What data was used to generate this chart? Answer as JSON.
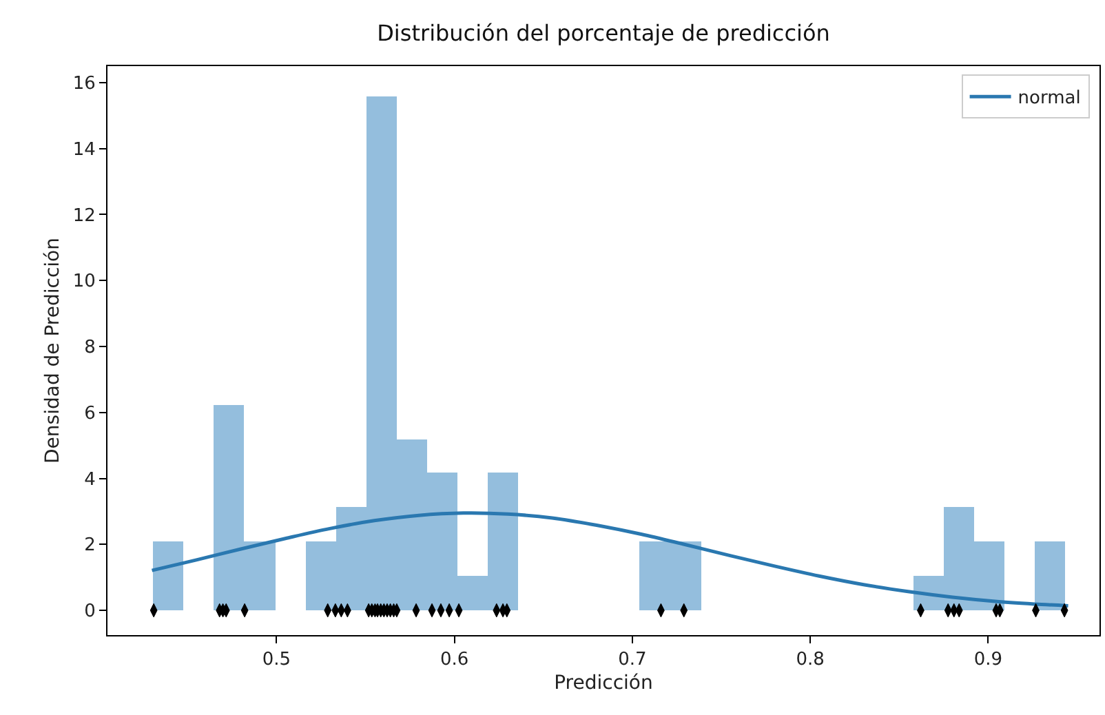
{
  "chart_data": {
    "type": "histogram",
    "title": "Distribución del porcentaje de predicción",
    "xlabel": "Predicción",
    "ylabel": "Densidad de Predicción",
    "bins": [
      0.4307,
      0.4478,
      0.4649,
      0.482,
      0.4991,
      0.5162,
      0.5333,
      0.5504,
      0.5675,
      0.5846,
      0.6017,
      0.6188,
      0.6359,
      0.653,
      0.6701,
      0.6872,
      0.7043,
      0.7214,
      0.7385,
      0.7556,
      0.7727,
      0.7898,
      0.8069,
      0.824,
      0.8411,
      0.8581,
      0.8752,
      0.8923,
      0.9094,
      0.9265,
      0.9436
    ],
    "values": [
      2.08,
      0,
      6.24,
      2.08,
      0,
      2.08,
      3.12,
      15.6,
      5.2,
      4.16,
      1.04,
      4.16,
      0,
      0,
      0,
      0,
      2.08,
      2.08,
      0,
      0,
      0,
      0,
      0,
      0,
      0,
      1.04,
      3.12,
      2.08,
      0,
      2.08
    ],
    "color": "#94bedd",
    "series": [
      {
        "type": "line",
        "name": "normal",
        "color": "#2a78b0",
        "x": [
          0.43,
          0.455,
          0.48,
          0.505,
          0.53,
          0.555,
          0.58,
          0.605,
          0.63,
          0.655,
          0.68,
          0.705,
          0.73,
          0.755,
          0.78,
          0.805,
          0.83,
          0.855,
          0.88,
          0.905,
          0.93,
          0.945
        ],
        "values": [
          1.21,
          1.53,
          1.86,
          2.18,
          2.48,
          2.72,
          2.88,
          2.95,
          2.92,
          2.8,
          2.58,
          2.31,
          1.99,
          1.66,
          1.34,
          1.04,
          0.78,
          0.57,
          0.4,
          0.27,
          0.18,
          0.14
        ]
      },
      {
        "type": "scatter",
        "color": "#000000",
        "x": [
          0.431,
          0.468,
          0.4699,
          0.4717,
          0.4821,
          0.5288,
          0.5331,
          0.5364,
          0.5399,
          0.5518,
          0.5536,
          0.5554,
          0.5568,
          0.5586,
          0.5604,
          0.5622,
          0.564,
          0.5659,
          0.5676,
          0.5785,
          0.5874,
          0.5924,
          0.5971,
          0.6025,
          0.6237,
          0.6273,
          0.6295,
          0.7161,
          0.729,
          0.8621,
          0.8775,
          0.8808,
          0.8837,
          0.9045,
          0.9066,
          0.9268,
          0.9429
        ],
        "values": [
          0,
          0,
          0,
          0,
          0,
          0,
          0,
          0,
          0,
          0,
          0,
          0,
          0,
          0,
          0,
          0,
          0,
          0,
          0,
          0,
          0,
          0,
          0,
          0,
          0,
          0,
          0,
          0,
          0,
          0,
          0,
          0,
          0,
          0,
          0,
          0,
          0
        ]
      }
    ],
    "xlim": [
      0.405,
      0.9626
    ],
    "xticks": [
      0.5,
      0.6,
      0.7,
      0.8,
      0.9
    ],
    "ylim": [
      -0.75,
      16.5
    ],
    "yticks": [
      0,
      2,
      4,
      6,
      8,
      10,
      12,
      14,
      16
    ],
    "legend": "top right"
  }
}
